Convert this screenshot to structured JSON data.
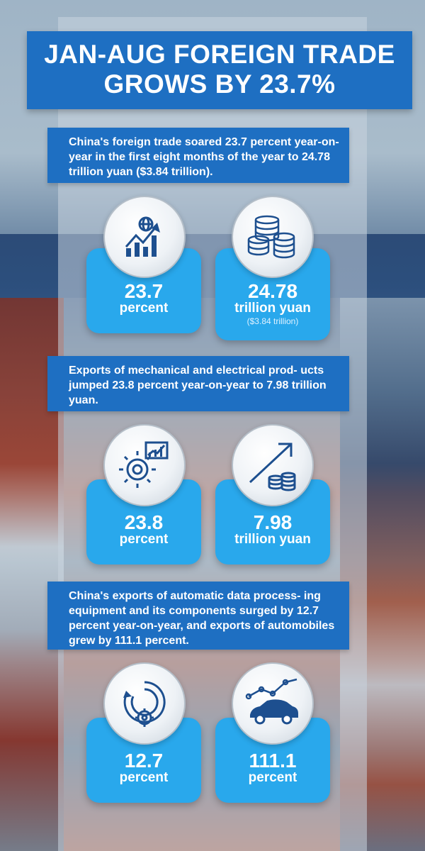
{
  "title": {
    "line1": "JAN-AUG FOREIGN TRADE",
    "line2": "GROWS BY 23.7%"
  },
  "sections": [
    {
      "text": "China's foreign trade soared 23.7 percent year-on-year in the first eight months of the year to 24.78 trillion yuan ($3.84 trillion).",
      "cards": [
        {
          "icon": "growth-chart-globe-icon",
          "value": "23.7",
          "unit": "percent",
          "sub": ""
        },
        {
          "icon": "coin-stacks-icon",
          "value": "24.78",
          "unit": "trillion yuan",
          "sub": "($3.84 trillion)"
        }
      ]
    },
    {
      "text": "Exports of mechanical and electrical prod- ucts jumped 23.8 percent year-on-year to 7.98 trillion yuan.",
      "cards": [
        {
          "icon": "gear-chart-icon",
          "value": "23.8",
          "unit": "percent",
          "sub": ""
        },
        {
          "icon": "rising-arrow-coins-icon",
          "value": "7.98",
          "unit": "trillion yuan",
          "sub": ""
        }
      ]
    },
    {
      "text": "China's exports of automatic data process- ing equipment and its components surged by 12.7 percent year-on-year, and exports of automobiles grew by 111.1 percent.",
      "cards": [
        {
          "icon": "data-processing-gear-icon",
          "value": "12.7",
          "unit": "percent",
          "sub": ""
        },
        {
          "icon": "car-trend-icon",
          "value": "111.1",
          "unit": "percent",
          "sub": ""
        }
      ]
    }
  ],
  "colors": {
    "banner_blue": "#1e6fc2",
    "card_blue": "#29a8ec",
    "icon_navy": "#1d4f8f"
  }
}
